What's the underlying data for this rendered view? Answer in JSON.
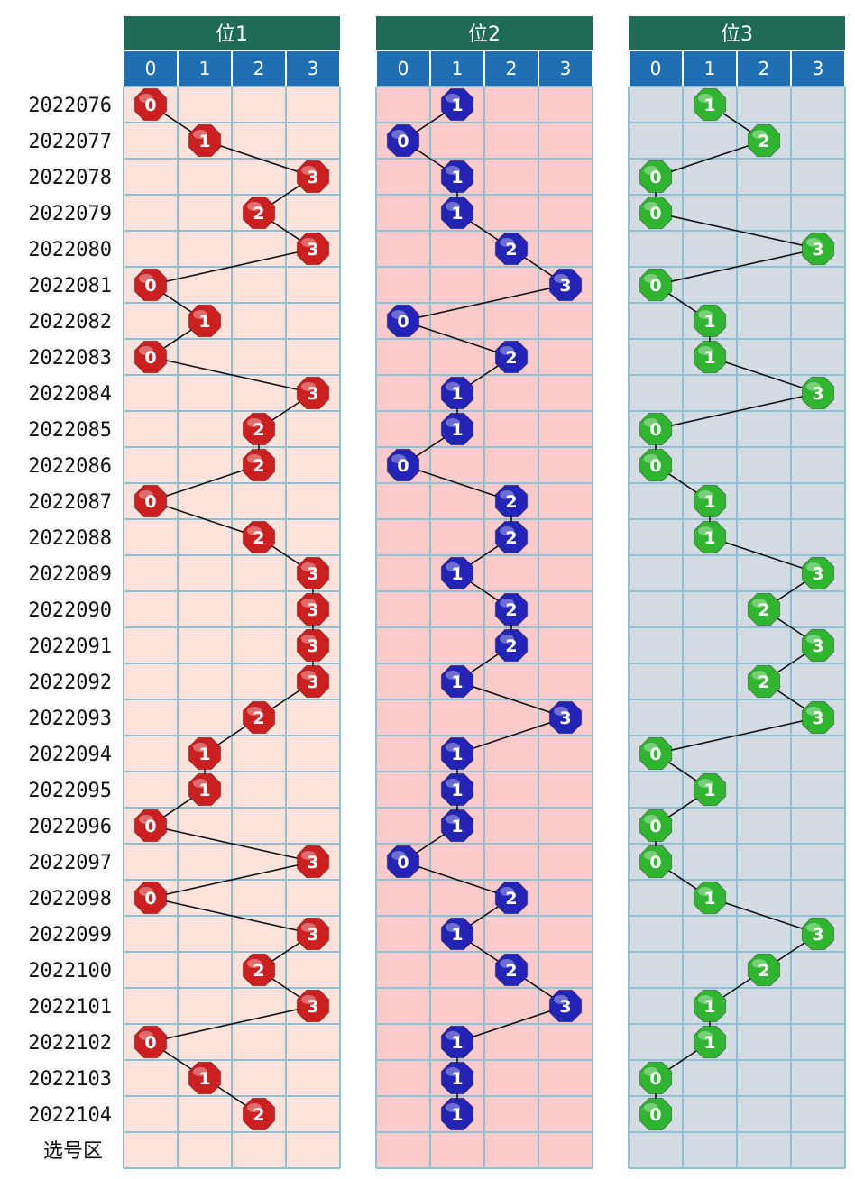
{
  "chart_data": {
    "type": "trend",
    "footer_label": "选号区",
    "periods": [
      "2022076",
      "2022077",
      "2022078",
      "2022079",
      "2022080",
      "2022081",
      "2022082",
      "2022083",
      "2022084",
      "2022085",
      "2022086",
      "2022087",
      "2022088",
      "2022089",
      "2022090",
      "2022091",
      "2022092",
      "2022093",
      "2022094",
      "2022095",
      "2022096",
      "2022097",
      "2022098",
      "2022099",
      "2022100",
      "2022101",
      "2022102",
      "2022103",
      "2022104"
    ],
    "columns": [
      "0",
      "1",
      "2",
      "3"
    ],
    "panels": [
      {
        "title": "位1",
        "ball_color": "#cc1f1f",
        "bg_color": "#fde3dc",
        "values": [
          0,
          1,
          3,
          2,
          3,
          0,
          1,
          0,
          3,
          2,
          2,
          0,
          2,
          3,
          3,
          3,
          3,
          2,
          1,
          1,
          0,
          3,
          0,
          3,
          2,
          3,
          0,
          1,
          2
        ]
      },
      {
        "title": "位2",
        "ball_color": "#2323b8",
        "bg_color": "#fbcaca",
        "values": [
          1,
          0,
          1,
          1,
          2,
          3,
          0,
          2,
          1,
          1,
          0,
          2,
          2,
          1,
          2,
          2,
          1,
          3,
          1,
          1,
          1,
          0,
          2,
          1,
          2,
          3,
          1,
          1,
          1
        ]
      },
      {
        "title": "位3",
        "ball_color": "#2fb52f",
        "bg_color": "#d3dbe3",
        "values": [
          1,
          2,
          0,
          0,
          3,
          0,
          1,
          1,
          3,
          0,
          0,
          1,
          1,
          3,
          2,
          3,
          2,
          3,
          0,
          1,
          0,
          0,
          1,
          3,
          2,
          1,
          1,
          0,
          0
        ]
      }
    ],
    "header_color": "#1f6b58",
    "subheader_color": "#1f6fb5",
    "grid_color": "#8fbfd2"
  }
}
